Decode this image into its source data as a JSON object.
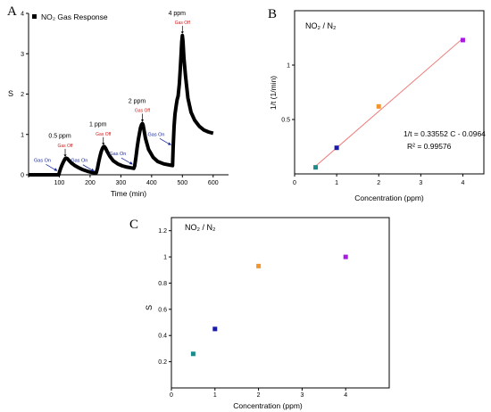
{
  "chart_data": [
    {
      "panel": "A",
      "type": "line",
      "legend": "NO₂ Gas Response",
      "xlabel": "Time (min)",
      "ylabel": "S",
      "xlim": [
        0,
        650
      ],
      "ylim": [
        0,
        4
      ],
      "xticks": [
        0,
        100,
        200,
        300,
        400,
        500,
        600
      ],
      "yticks": [
        0,
        1,
        2,
        3,
        4
      ],
      "series": [
        {
          "x": [
            0,
            98,
            100,
            104,
            108,
            112,
            116,
            119,
            122,
            126,
            132,
            140,
            150,
            162,
            175,
            190,
            205,
            215,
            220,
            224,
            228,
            232,
            236,
            240,
            243,
            246,
            250,
            256,
            264,
            275,
            290,
            305,
            320,
            335,
            342,
            345,
            349,
            353,
            357,
            361,
            364,
            367,
            370,
            372,
            375,
            380,
            390,
            405,
            420,
            440,
            460,
            468,
            470,
            473,
            476,
            480,
            483,
            486,
            490,
            493,
            496,
            498,
            500,
            502,
            505,
            510,
            518,
            528,
            540,
            555,
            570,
            585,
            600
          ],
          "y": [
            0.0,
            0.0,
            0.06,
            0.15,
            0.23,
            0.3,
            0.36,
            0.4,
            0.41,
            0.4,
            0.35,
            0.29,
            0.23,
            0.18,
            0.13,
            0.09,
            0.06,
            0.05,
            0.05,
            0.16,
            0.32,
            0.46,
            0.57,
            0.65,
            0.69,
            0.7,
            0.66,
            0.57,
            0.46,
            0.35,
            0.27,
            0.22,
            0.19,
            0.17,
            0.16,
            0.22,
            0.44,
            0.67,
            0.88,
            1.05,
            1.17,
            1.24,
            1.27,
            1.24,
            1.12,
            0.9,
            0.63,
            0.43,
            0.33,
            0.27,
            0.24,
            0.23,
            0.7,
            1.2,
            1.5,
            1.72,
            1.86,
            1.95,
            2.25,
            2.6,
            3.0,
            3.3,
            3.45,
            3.3,
            2.9,
            2.45,
            1.9,
            1.55,
            1.35,
            1.2,
            1.11,
            1.06,
            1.03
          ]
        }
      ],
      "annotations": [
        {
          "text": "Gas On",
          "kind": "on",
          "x": 100
        },
        {
          "text": "Gas Off",
          "kind": "off",
          "x": 119
        },
        {
          "text": "Gas On",
          "kind": "on",
          "x": 220
        },
        {
          "text": "Gas Off",
          "kind": "off",
          "x": 243
        },
        {
          "text": "Gas On",
          "kind": "on",
          "x": 345
        },
        {
          "text": "Gas Off",
          "kind": "off",
          "x": 370
        },
        {
          "text": "Gas On",
          "kind": "on",
          "x": 470
        },
        {
          "text": "Gas Off",
          "kind": "off",
          "x": 500
        }
      ],
      "conc_labels": [
        {
          "text": "0.5 ppm",
          "x": 119,
          "y": 0.41
        },
        {
          "text": "1 ppm",
          "x": 243,
          "y": 0.7
        },
        {
          "text": "2 ppm",
          "x": 370,
          "y": 1.27
        },
        {
          "text": "4 ppm",
          "x": 500,
          "y": 3.45
        }
      ]
    },
    {
      "panel": "B",
      "type": "scatter",
      "inset_label": "NO₂ / N₂",
      "xlabel": "Concentration (ppm)",
      "ylabel": "1/t (1/min)",
      "xlim": [
        0,
        4.5
      ],
      "ylim": [
        0,
        1.5
      ],
      "xticks": [
        0,
        1,
        2,
        3,
        4
      ],
      "yticks": [
        0.5,
        1.0
      ],
      "points": [
        {
          "x": 0.5,
          "y": 0.06,
          "color": "#1a8a8a"
        },
        {
          "x": 1,
          "y": 0.24,
          "color": "#1a1aa8"
        },
        {
          "x": 2,
          "y": 0.62,
          "color": "#f0962c"
        },
        {
          "x": 4,
          "y": 1.23,
          "color": "#a81ae0"
        }
      ],
      "fit": {
        "slope": 0.33552,
        "intercept": -0.0964,
        "x_range": [
          0.5,
          4
        ],
        "color": "#f07a7a"
      },
      "fit_equation": "1/t = 0.33552 C - 0.0964",
      "r2": "R² = 0.99576"
    },
    {
      "panel": "C",
      "type": "scatter",
      "inset_label": "NO₂ / N₂",
      "xlabel": "Concentration (ppm)",
      "ylabel": "S",
      "xlim": [
        0,
        5
      ],
      "ylim": [
        0,
        1.2
      ],
      "xticks": [
        0,
        1,
        2,
        3,
        4
      ],
      "yticks": [
        0.2,
        0.4,
        0.6,
        0.8,
        1.0,
        1.2
      ],
      "points": [
        {
          "x": 0.5,
          "y": 0.26,
          "color": "#1a8a8a"
        },
        {
          "x": 1,
          "y": 0.45,
          "color": "#1a1aa8"
        },
        {
          "x": 2,
          "y": 0.93,
          "color": "#f0962c"
        },
        {
          "x": 4,
          "y": 1.0,
          "color": "#a81ae0"
        }
      ]
    }
  ],
  "colors": {
    "gas_on": "#1a2a9a",
    "gas_off": "#d01818",
    "line": "#000000",
    "axis": "#000000"
  }
}
